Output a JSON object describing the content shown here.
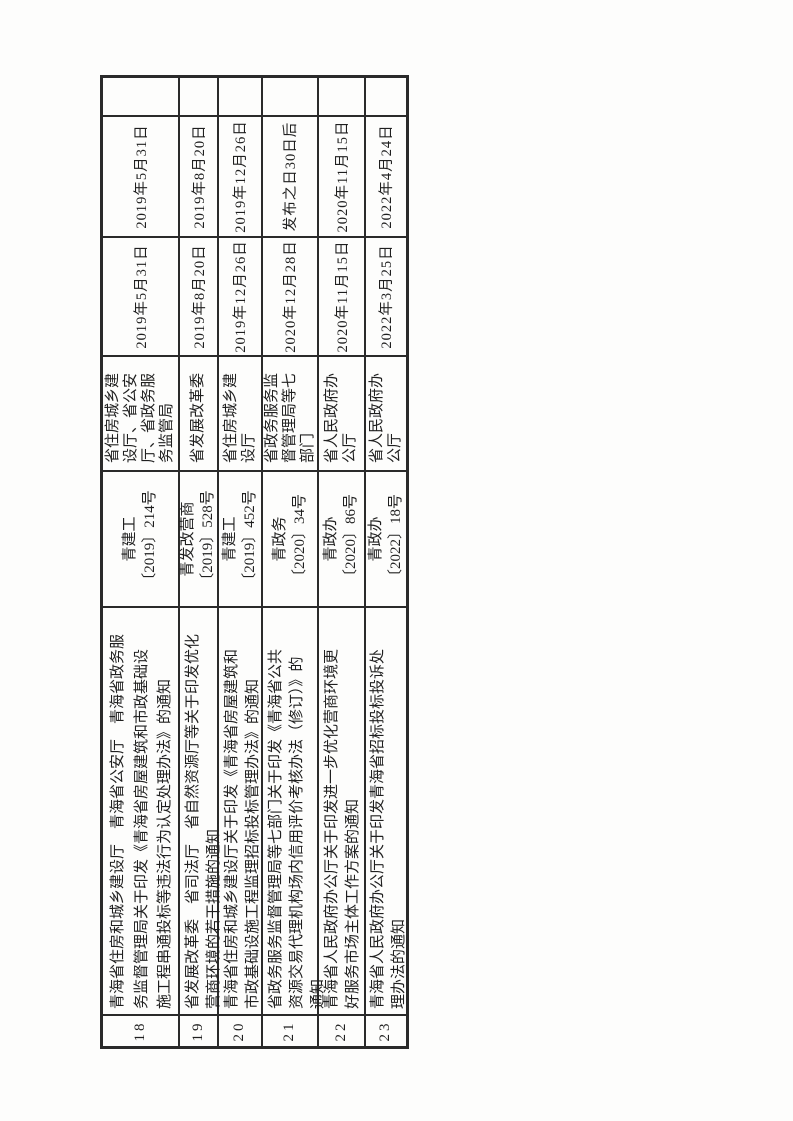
{
  "page": {
    "ink_color": "#1f1f1f",
    "border_color": "#2a2a2a",
    "background": "#fdfdfc"
  },
  "table": {
    "rows": [
      {
        "no": "18",
        "title": "青海省住房和城乡建设厅　青海省公安厅　青海省政务服\n务监督管理局关于印发《青海省房屋建筑和市政基础设\n施工程串通投标等违法行为认定处理办法》的通知",
        "doc_no": "青建工\n〔2019〕214号",
        "agency": "省住房城乡建\n设厅、省公安\n厅、省政务服\n务监管局",
        "date1": "2019年5月31日",
        "date2": "2019年5月31日",
        "remark": ""
      },
      {
        "no": "19",
        "title": "省发展改革委　省司法厅　省自然资源厅等关于印发优化\n营商环境的若干措施的通知",
        "doc_no": "青发改营商\n〔2019〕528号",
        "agency": "省发展改革委",
        "date1": "2019年8月20日",
        "date2": "2019年8月20日",
        "remark": ""
      },
      {
        "no": "20",
        "title": "青海省住房和城乡建设厅关于印发《青海省房屋建筑和\n市政基础设施工程监理招标投标管理办法》的通知",
        "doc_no": "青建工\n〔2019〕452号",
        "agency": "省住房城乡建\n设厅",
        "date1": "2019年12月26日",
        "date2": "2019年12月26日",
        "remark": ""
      },
      {
        "no": "21",
        "title": "省政务服务监督管理局等七部门关于印发《青海省公共\n资源交易代理机构场内信用评价考核办法（修订）》的\n通知",
        "doc_no": "青政务\n〔2020〕34号",
        "agency": "省政务服务监\n督管理局等七\n部门",
        "date1": "2020年12月28日",
        "date2": "发布之日30日后",
        "remark": ""
      },
      {
        "no": "22",
        "title": "青海省人民政府办公厅关于印发进一步优化营商环境更\n好服务市场主体工作方案的通知",
        "doc_no": "青政办\n〔2020〕86号",
        "agency": "省人民政府办\n公厅",
        "date1": "2020年11月15日",
        "date2": "2020年11月15日",
        "remark": ""
      },
      {
        "no": "23",
        "title": "青海省人民政府办公厅关于印发青海省招标投标投诉处\n理办法的通知",
        "doc_no": "青政办\n〔2022〕18号",
        "agency": "省人民政府办\n公厅",
        "date1": "2022年3月25日",
        "date2": "2022年4月24日",
        "remark": ""
      }
    ]
  }
}
